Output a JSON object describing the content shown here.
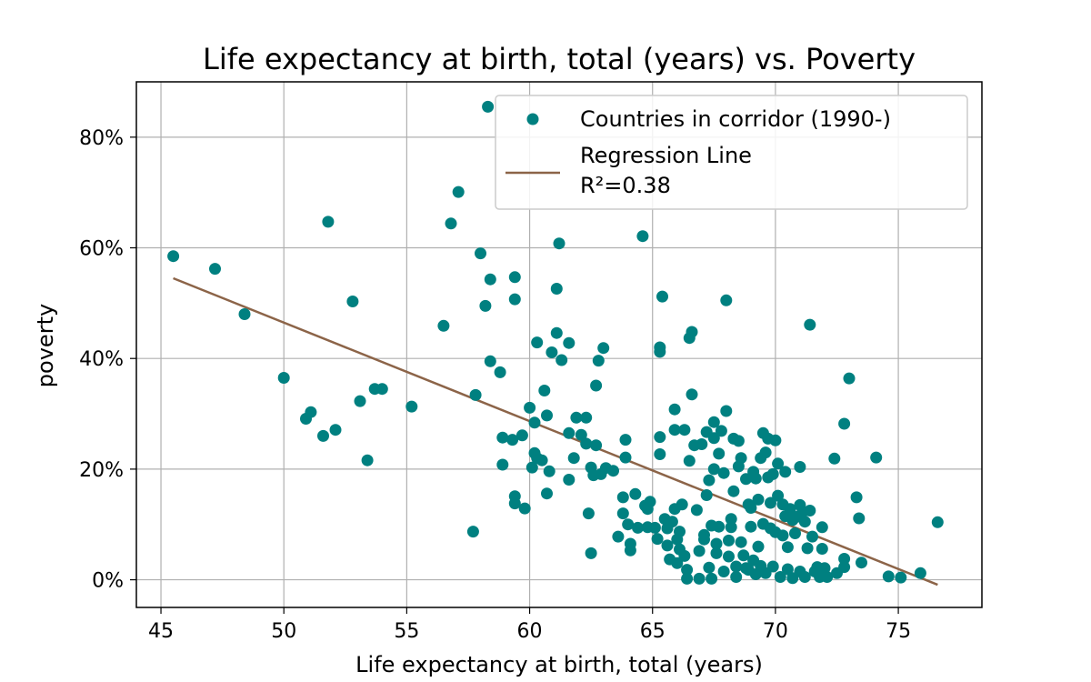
{
  "chart_data": {
    "type": "scatter",
    "title": "Life expectancy at birth, total (years) vs. Poverty",
    "xlabel": "Life expectancy at birth, total (years)",
    "ylabel": "poverty",
    "xlim": [
      44.0,
      78.4
    ],
    "ylim": [
      -5,
      90
    ],
    "x_ticks": [
      "45",
      "50",
      "55",
      "60",
      "65",
      "70",
      "75"
    ],
    "x_tick_values": [
      45,
      50,
      55,
      60,
      65,
      70,
      75
    ],
    "y_ticks": [
      "0%",
      "20%",
      "40%",
      "60%",
      "80%"
    ],
    "y_tick_values": [
      0,
      20,
      40,
      60,
      80
    ],
    "grid": true,
    "legend_position": "top-right",
    "colors": {
      "points": "#008080",
      "line": "#8c6448",
      "grid": "#b0b0b0"
    },
    "series": [
      {
        "name": "Countries in corridor (1990-)",
        "type": "scatter",
        "points": [
          [
            45.5,
            58.5
          ],
          [
            47.2,
            56.2
          ],
          [
            48.4,
            48
          ],
          [
            50,
            36.5
          ],
          [
            51.8,
            64.7
          ],
          [
            52.8,
            50.3
          ],
          [
            53.1,
            32.3
          ],
          [
            53.4,
            21.6
          ],
          [
            53.7,
            34.5
          ],
          [
            54,
            34.5
          ],
          [
            55.2,
            31.3
          ],
          [
            50.9,
            29.1
          ],
          [
            51.1,
            30.3
          ],
          [
            51.6,
            26
          ],
          [
            52.1,
            27.1
          ],
          [
            56.5,
            45.9
          ],
          [
            56.8,
            64.4
          ],
          [
            57.1,
            70.1
          ],
          [
            57.7,
            8.7
          ],
          [
            57.8,
            33.4
          ],
          [
            58,
            59
          ],
          [
            58.2,
            49.5
          ],
          [
            58.3,
            85.5
          ],
          [
            58.4,
            54.3
          ],
          [
            58.4,
            39.5
          ],
          [
            58.8,
            37.5
          ],
          [
            58.9,
            25.7
          ],
          [
            58.9,
            20.8
          ],
          [
            59.3,
            25.3
          ],
          [
            59.4,
            50.7
          ],
          [
            59.4,
            54.7
          ],
          [
            59.4,
            13.8
          ],
          [
            59.4,
            15.1
          ],
          [
            59.7,
            26.1
          ],
          [
            59.8,
            12.9
          ],
          [
            60,
            31.1
          ],
          [
            60.1,
            20.3
          ],
          [
            60.2,
            22.9
          ],
          [
            60.2,
            28.4
          ],
          [
            60.3,
            42.9
          ],
          [
            60.3,
            22
          ],
          [
            60.5,
            21.6
          ],
          [
            60.6,
            34.2
          ],
          [
            60.7,
            15.6
          ],
          [
            60.7,
            29.7
          ],
          [
            60.8,
            19.6
          ],
          [
            60.9,
            41.1
          ],
          [
            61.1,
            44.6
          ],
          [
            61.1,
            52.6
          ],
          [
            61.2,
            60.8
          ],
          [
            61.3,
            39.7
          ],
          [
            61.6,
            42.8
          ],
          [
            61.6,
            26.5
          ],
          [
            61.6,
            18.1
          ],
          [
            61.8,
            22
          ],
          [
            61.9,
            29.3
          ],
          [
            62.1,
            26.2
          ],
          [
            62.3,
            29.3
          ],
          [
            62.3,
            24.6
          ],
          [
            62.4,
            12
          ],
          [
            62.5,
            20.3
          ],
          [
            62.5,
            4.8
          ],
          [
            62.6,
            18.9
          ],
          [
            62.7,
            24.3
          ],
          [
            62.7,
            35.1
          ],
          [
            62.8,
            39.6
          ],
          [
            62.9,
            19.1
          ],
          [
            63,
            41.9
          ],
          [
            63.1,
            20.2
          ],
          [
            63.4,
            19.7
          ],
          [
            63.6,
            7.8
          ],
          [
            63.8,
            14.9
          ],
          [
            63.8,
            12
          ],
          [
            63.9,
            25.3
          ],
          [
            63.9,
            22.1
          ],
          [
            64,
            10
          ],
          [
            64.1,
            6.5
          ],
          [
            64.1,
            5.3
          ],
          [
            64.3,
            15.5
          ],
          [
            64.4,
            9.4
          ],
          [
            64.6,
            62.1
          ],
          [
            64.7,
            13.4
          ],
          [
            64.8,
            9.5
          ],
          [
            64.8,
            12.8
          ],
          [
            64.9,
            14.1
          ],
          [
            65.1,
            9.4
          ],
          [
            65.2,
            7.4
          ],
          [
            65.3,
            42
          ],
          [
            65.3,
            41.2
          ],
          [
            65.3,
            25.8
          ],
          [
            65.3,
            22.7
          ],
          [
            65.4,
            51.2
          ],
          [
            65.5,
            11
          ],
          [
            65.6,
            9.3
          ],
          [
            65.6,
            6.2
          ],
          [
            65.7,
            3.7
          ],
          [
            65.8,
            10.5
          ],
          [
            65.9,
            30.8
          ],
          [
            65.9,
            27.1
          ],
          [
            65.9,
            12.8
          ],
          [
            66,
            7.3
          ],
          [
            66,
            3
          ],
          [
            66.1,
            5.5
          ],
          [
            66.1,
            8.7
          ],
          [
            66.2,
            13.6
          ],
          [
            66.3,
            27.1
          ],
          [
            66.3,
            4.3
          ],
          [
            66.4,
            1.8
          ],
          [
            66.4,
            0.2
          ],
          [
            66.5,
            21.5
          ],
          [
            66.5,
            43.7
          ],
          [
            66.6,
            44.8
          ],
          [
            66.6,
            33.5
          ],
          [
            66.7,
            24.3
          ],
          [
            66.8,
            12.6
          ],
          [
            66.9,
            5.2
          ],
          [
            66.9,
            0.2
          ],
          [
            67,
            24.5
          ],
          [
            67.1,
            8.1
          ],
          [
            67.1,
            7.3
          ],
          [
            67.2,
            15.3
          ],
          [
            67.2,
            26.7
          ],
          [
            67.3,
            18
          ],
          [
            67.3,
            2.2
          ],
          [
            67.4,
            9.8
          ],
          [
            67.4,
            0.2
          ],
          [
            67.5,
            25.6
          ],
          [
            67.5,
            28.5
          ],
          [
            67.5,
            20
          ],
          [
            67.6,
            6.5
          ],
          [
            67.6,
            4.8
          ],
          [
            67.7,
            9.6
          ],
          [
            67.7,
            22.8
          ],
          [
            67.8,
            26.9
          ],
          [
            67.9,
            19.3
          ],
          [
            67.9,
            1.5
          ],
          [
            68,
            50.5
          ],
          [
            68,
            30.5
          ],
          [
            68.1,
            7.1
          ],
          [
            68.1,
            4.2
          ],
          [
            68.2,
            9.5
          ],
          [
            68.2,
            11
          ],
          [
            68.3,
            25.5
          ],
          [
            68.3,
            16
          ],
          [
            68.4,
            2.4
          ],
          [
            68.4,
            0.5
          ],
          [
            68.5,
            25.1
          ],
          [
            68.5,
            20.5
          ],
          [
            68.6,
            22
          ],
          [
            68.6,
            6.8
          ],
          [
            68.7,
            4.4
          ],
          [
            68.8,
            18.2
          ],
          [
            68.8,
            2.1
          ],
          [
            68.9,
            13.6
          ],
          [
            68.9,
            1.8
          ],
          [
            69,
            9.6
          ],
          [
            69,
            13
          ],
          [
            69.1,
            19.5
          ],
          [
            69.1,
            3.5
          ],
          [
            69.2,
            1
          ],
          [
            69.2,
            18.3
          ],
          [
            69.3,
            6
          ],
          [
            69.3,
            14.5
          ],
          [
            69.4,
            22
          ],
          [
            69.4,
            2.5
          ],
          [
            69.5,
            26.5
          ],
          [
            69.5,
            10.1
          ],
          [
            69.6,
            23
          ],
          [
            69.6,
            1.2
          ],
          [
            69.7,
            18.5
          ],
          [
            69.7,
            25.5
          ],
          [
            69.8,
            9.3
          ],
          [
            69.8,
            13.9
          ],
          [
            69.9,
            19.1
          ],
          [
            69.9,
            2.4
          ],
          [
            70,
            25.2
          ],
          [
            70,
            8.6
          ],
          [
            70.1,
            21
          ],
          [
            70.1,
            15.2
          ],
          [
            70.2,
            0.5
          ],
          [
            70.3,
            13.6
          ],
          [
            70.3,
            8
          ],
          [
            70.4,
            19.5
          ],
          [
            70.4,
            11.5
          ],
          [
            70.5,
            5.9
          ],
          [
            70.5,
            1.9
          ],
          [
            70.6,
            12.8
          ],
          [
            70.7,
            10.8
          ],
          [
            70.7,
            0.3
          ],
          [
            70.8,
            8.4
          ],
          [
            70.9,
            11.4
          ],
          [
            71,
            20.4
          ],
          [
            71,
            13.5
          ],
          [
            71,
            1.5
          ],
          [
            71.1,
            12.2
          ],
          [
            71.2,
            10.5
          ],
          [
            71.2,
            0.5
          ],
          [
            71.3,
            5.7
          ],
          [
            71.4,
            12.5
          ],
          [
            71.4,
            46.1
          ],
          [
            71.5,
            7.8
          ],
          [
            71.6,
            1.5
          ],
          [
            71.7,
            2.3
          ],
          [
            71.8,
            0.5
          ],
          [
            71.9,
            9.5
          ],
          [
            71.9,
            5.6
          ],
          [
            72,
            2.1
          ],
          [
            72.1,
            0.5
          ],
          [
            72.4,
            21.9
          ],
          [
            72.5,
            1.2
          ],
          [
            72.8,
            28.2
          ],
          [
            72.8,
            3.8
          ],
          [
            72.8,
            2.3
          ],
          [
            73,
            36.4
          ],
          [
            73.3,
            14.9
          ],
          [
            73.4,
            11.1
          ],
          [
            73.5,
            3.1
          ],
          [
            74.1,
            22.1
          ],
          [
            74.6,
            0.6
          ],
          [
            75.1,
            0.4
          ],
          [
            75.9,
            1.2
          ],
          [
            76.6,
            10.4
          ]
        ]
      },
      {
        "name": "Regression Line\nR²=0.38",
        "type": "line",
        "points": [
          [
            45.5,
            54.5
          ],
          [
            76.6,
            -0.9
          ]
        ]
      }
    ]
  }
}
